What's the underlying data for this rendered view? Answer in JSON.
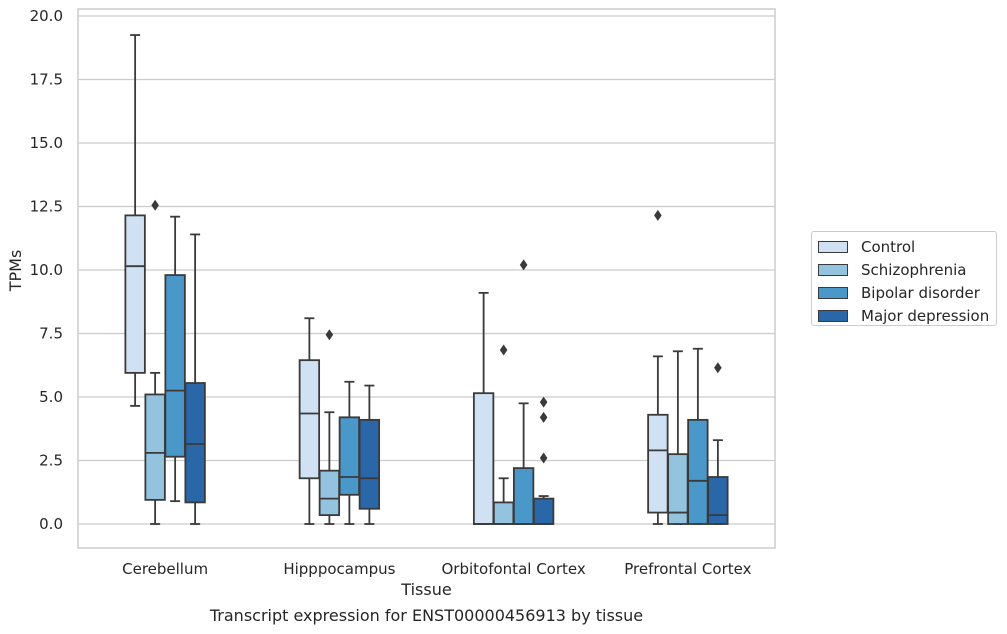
{
  "caption": "Transcript expression for ENST00000456913 by tissue",
  "chart_data": {
    "type": "box",
    "title": "",
    "xlabel": "Tissue",
    "ylabel": "TPMs",
    "ylim": [
      -0.9,
      20.2
    ],
    "yticks": [
      0.0,
      2.5,
      5.0,
      7.5,
      10.0,
      12.5,
      15.0,
      17.5,
      20.0
    ],
    "ytick_labels": [
      "0.0",
      "2.5",
      "5.0",
      "7.5",
      "10.0",
      "12.5",
      "15.0",
      "17.5",
      "20.0"
    ],
    "grid": "horizontal",
    "legend_position": "outside-right",
    "categories": [
      "Cerebellum",
      "Hipppocampus",
      "Orbitofontal Cortex",
      "Prefrontal Cortex"
    ],
    "series": [
      {
        "name": "Control",
        "color": "#cfe1f2",
        "boxes": [
          {
            "whislo": 4.65,
            "q1": 5.95,
            "med": 10.15,
            "q3": 12.15,
            "whishi": 19.25,
            "fliers": []
          },
          {
            "whislo": 0.0,
            "q1": 1.8,
            "med": 4.35,
            "q3": 6.45,
            "whishi": 8.1,
            "fliers": []
          },
          {
            "whislo": 0.0,
            "q1": 0.0,
            "med": 0.0,
            "q3": 5.15,
            "whishi": 9.1,
            "fliers": []
          },
          {
            "whislo": 0.0,
            "q1": 0.45,
            "med": 2.9,
            "q3": 4.3,
            "whishi": 6.6,
            "fliers": [
              12.15
            ]
          }
        ]
      },
      {
        "name": "Schizophrenia",
        "color": "#93c3df",
        "boxes": [
          {
            "whislo": 0.0,
            "q1": 0.95,
            "med": 2.8,
            "q3": 5.1,
            "whishi": 5.95,
            "fliers": [
              12.55
            ]
          },
          {
            "whislo": 0.0,
            "q1": 0.35,
            "med": 1.0,
            "q3": 2.1,
            "whishi": 4.4,
            "fliers": [
              7.45
            ]
          },
          {
            "whislo": 0.0,
            "q1": 0.0,
            "med": 0.0,
            "q3": 0.85,
            "whishi": 1.8,
            "fliers": [
              6.85
            ]
          },
          {
            "whislo": 0.0,
            "q1": 0.0,
            "med": 0.45,
            "q3": 2.75,
            "whishi": 6.8,
            "fliers": []
          }
        ]
      },
      {
        "name": "Bipolar disorder",
        "color": "#4a98c9",
        "boxes": [
          {
            "whislo": 0.9,
            "q1": 2.65,
            "med": 5.25,
            "q3": 9.8,
            "whishi": 12.1,
            "fliers": []
          },
          {
            "whislo": 0.0,
            "q1": 1.15,
            "med": 1.85,
            "q3": 4.2,
            "whishi": 5.6,
            "fliers": []
          },
          {
            "whislo": 0.0,
            "q1": 0.0,
            "med": 0.0,
            "q3": 2.2,
            "whishi": 4.75,
            "fliers": [
              10.2
            ]
          },
          {
            "whislo": 0.0,
            "q1": 0.0,
            "med": 1.7,
            "q3": 4.1,
            "whishi": 6.9,
            "fliers": []
          }
        ]
      },
      {
        "name": "Major depression",
        "color": "#2967a8",
        "boxes": [
          {
            "whislo": 0.0,
            "q1": 0.85,
            "med": 3.15,
            "q3": 5.55,
            "whishi": 11.4,
            "fliers": []
          },
          {
            "whislo": 0.0,
            "q1": 0.6,
            "med": 1.8,
            "q3": 4.1,
            "whishi": 5.45,
            "fliers": []
          },
          {
            "whislo": 0.0,
            "q1": 0.0,
            "med": 0.0,
            "q3": 1.0,
            "whishi": 1.1,
            "fliers": [
              2.6,
              4.2,
              4.8
            ]
          },
          {
            "whislo": 0.0,
            "q1": 0.0,
            "med": 0.35,
            "q3": 1.85,
            "whishi": 3.3,
            "fliers": [
              6.15
            ]
          }
        ]
      }
    ]
  },
  "colors": {
    "edge": "#3a3a3a",
    "grid": "#cccccc",
    "spine": "#cccccc"
  }
}
